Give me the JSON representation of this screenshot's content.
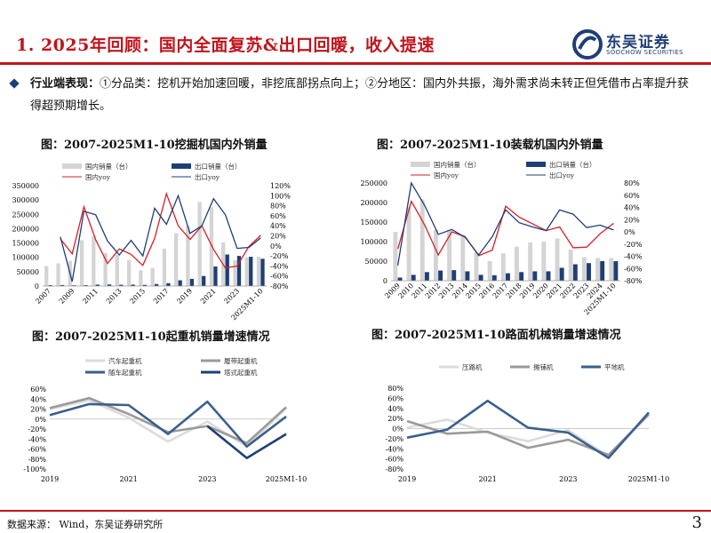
{
  "page": {
    "title": "1. 2025年回顾：国内全面复苏&出口回暖，收入提速",
    "logo_cn": "东吴证券",
    "logo_en": "SOOCHOW SECURITIES",
    "logo_icon": "soochow-logo-icon",
    "bullet_label": "行业端表现：",
    "bullet_text": "①分品类：挖机开始加速回暖，非挖底部拐点向上；②分地区：国内外共振，海外需求尚未转正但凭借市占率提升获得超预期增长。",
    "source": "数据来源：  Wind，东吴证券研究所",
    "page_number": "3",
    "accent_color": "#c0141c",
    "navy_color": "#1f3e76"
  },
  "chart_data": [
    {
      "id": "excavator",
      "type": "bar",
      "title": "图：2007-2025M1-10挖掘机国内外销量",
      "categories": [
        "2007",
        "2008",
        "2009",
        "2010",
        "2011",
        "2012",
        "2013",
        "2014",
        "2015",
        "2016",
        "2017",
        "2018",
        "2019",
        "2020",
        "2021",
        "2022",
        "2023",
        "2024",
        "2025M1-10"
      ],
      "tick_labels": [
        "2007",
        "2009",
        "2011",
        "2013",
        "2015",
        "2017",
        "2019",
        "2021",
        "2023",
        "2025M1-10"
      ],
      "series": [
        {
          "name": "国内销量（台）",
          "kind": "bar",
          "axis": "left",
          "color": "#d4d4d4",
          "values": [
            70000,
            79000,
            88000,
            160000,
            175000,
            115000,
            108000,
            90000,
            55000,
            63000,
            130000,
            184000,
            209000,
            293000,
            275000,
            152000,
            90000,
            100000,
            102000
          ]
        },
        {
          "name": "出口销量（台）",
          "kind": "bar",
          "axis": "left",
          "color": "#1f3e76",
          "values": [
            3000,
            3500,
            2500,
            3000,
            5000,
            5500,
            4500,
            5000,
            4000,
            7000,
            10000,
            20000,
            25000,
            35000,
            68000,
            110000,
            105000,
            102000,
            95000
          ]
        },
        {
          "name": "国内yoy",
          "kind": "line",
          "axis": "right",
          "color": "#d61f26",
          "values": [
            null,
            14,
            -16,
            78,
            12,
            -35,
            -6,
            -17,
            -39,
            15,
            104,
            40,
            13,
            40,
            -7,
            -44,
            -40,
            -1,
            21
          ]
        },
        {
          "name": "出口yoy",
          "kind": "line",
          "axis": "right",
          "color": "#1f3e76",
          "values": [
            null,
            18,
            -71,
            69,
            62,
            10,
            -18,
            11,
            -20,
            75,
            43,
            100,
            25,
            40,
            94,
            62,
            -5,
            -3,
            16
          ]
        }
      ],
      "y_left": {
        "min": 0,
        "max": 350000,
        "ticks": [
          0,
          50000,
          100000,
          150000,
          200000,
          250000,
          300000,
          350000
        ]
      },
      "y_right": {
        "min": -80,
        "max": 120,
        "ticks": [
          "120%",
          "100%",
          "80%",
          "60%",
          "40%",
          "20%",
          "0%",
          "-20%",
          "-40%",
          "-60%",
          "-80%"
        ]
      }
    },
    {
      "id": "loader",
      "type": "bar",
      "title": "图：2007-2025M1-10装载机国内外销量",
      "categories": [
        "2009",
        "2010",
        "2011",
        "2012",
        "2013",
        "2014",
        "2015",
        "2016",
        "2017",
        "2018",
        "2019",
        "2020",
        "2021",
        "2022",
        "2023",
        "2024",
        "2025M1-10"
      ],
      "tick_labels": [
        "2009",
        "2010",
        "2011",
        "2012",
        "2013",
        "2014",
        "2015",
        "2016",
        "2017",
        "2018",
        "2019",
        "2020",
        "2021",
        "2022",
        "2023",
        "2024",
        "2025M1-10"
      ],
      "series": [
        {
          "name": "国内销量（台）",
          "kind": "bar",
          "axis": "left",
          "color": "#d4d4d4",
          "values": [
            125000,
            188000,
            208000,
            130000,
            130000,
            118000,
            72000,
            50000,
            70000,
            87000,
            98000,
            100000,
            108000,
            80000,
            60000,
            58000,
            58000
          ]
        },
        {
          "name": "出口销量（台）",
          "kind": "bar",
          "axis": "left",
          "color": "#1f3e76",
          "values": [
            8000,
            15000,
            22000,
            26000,
            27000,
            24000,
            15000,
            14000,
            19000,
            22000,
            24000,
            24000,
            33000,
            42000,
            45000,
            50000,
            50000
          ]
        },
        {
          "name": "国内yoy",
          "kind": "line",
          "axis": "right",
          "color": "#d61f26",
          "values": [
            -28,
            50,
            11,
            -38,
            0,
            -8,
            -39,
            -30,
            42,
            24,
            13,
            2,
            8,
            -26,
            -25,
            -3,
            14
          ]
        },
        {
          "name": "出口yoy",
          "kind": "line",
          "axis": "right",
          "color": "#1f3e76",
          "values": [
            -55,
            80,
            43,
            -4,
            4,
            -9,
            -38,
            -8,
            36,
            15,
            8,
            2,
            36,
            29,
            7,
            11,
            3
          ]
        }
      ],
      "y_left": {
        "min": 0,
        "max": 250000,
        "ticks": [
          0,
          50000,
          100000,
          150000,
          200000,
          250000
        ]
      },
      "y_right": {
        "min": -80,
        "max": 80,
        "ticks": [
          "80%",
          "60%",
          "40%",
          "20%",
          "0%",
          "-20%",
          "-40%",
          "-60%",
          "-80%"
        ]
      }
    },
    {
      "id": "crane",
      "type": "line",
      "title": "图：2007-2025M1-10起重机销量增速情况",
      "categories": [
        "2019",
        "2020",
        "2021",
        "2022",
        "2023",
        "2024",
        "2025M1-10"
      ],
      "tick_labels": [
        "2019",
        "2021",
        "2023",
        "2025M1-10"
      ],
      "series": [
        {
          "name": "汽车起重机",
          "color": "#dcdcdc",
          "values": [
            20,
            38,
            3,
            -45,
            -5,
            -55,
            22
          ]
        },
        {
          "name": "履带起重机",
          "color": "#9a9a9a",
          "values": [
            22,
            42,
            10,
            -26,
            -14,
            -48,
            24
          ]
        },
        {
          "name": "随车起重机",
          "color": "#3b5f8e",
          "values": [
            8,
            30,
            28,
            -30,
            35,
            -55,
            5
          ]
        },
        {
          "name": "塔式起重机",
          "color": "#1f3e76",
          "values": [
            null,
            null,
            null,
            null,
            -14,
            -78,
            -30
          ]
        }
      ],
      "y": {
        "min": -100,
        "max": 60,
        "ticks": [
          "60%",
          "40%",
          "20%",
          "0%",
          "-20%",
          "-40%",
          "-60%",
          "-80%",
          "-100%"
        ]
      }
    },
    {
      "id": "paving",
      "type": "line",
      "title": "图：2007-2025M1-10路面机械销量增速情况",
      "categories": [
        "2019",
        "2020",
        "2021",
        "2022",
        "2023",
        "2024",
        "2025M1-10"
      ],
      "tick_labels": [
        "2019",
        "2021",
        "2023",
        "2025M1-10"
      ],
      "series": [
        {
          "name": "压路机",
          "color": "#dcdcdc",
          "values": [
            2,
            18,
            -8,
            -25,
            -3,
            -55,
            28
          ]
        },
        {
          "name": "摊铺机",
          "color": "#9a9a9a",
          "values": [
            15,
            -10,
            -6,
            -38,
            -22,
            -52,
            28
          ]
        },
        {
          "name": "平地机",
          "color": "#3b5f8e",
          "values": [
            -18,
            -2,
            55,
            2,
            -8,
            -58,
            32
          ]
        }
      ],
      "y": {
        "min": -80,
        "max": 80,
        "ticks": [
          "80%",
          "60%",
          "40%",
          "20%",
          "0%",
          "-20%",
          "-40%",
          "-60%",
          "-80%"
        ]
      }
    }
  ]
}
